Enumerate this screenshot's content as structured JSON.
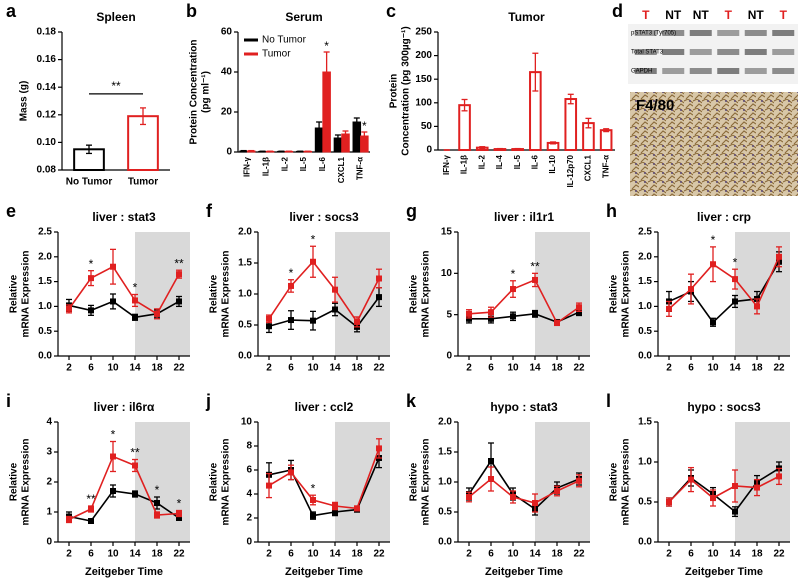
{
  "chart_data": [
    {
      "type": "bar",
      "panel": "a",
      "title": "Spleen",
      "ylabel": "Mass (g)",
      "categories": [
        "No Tumor",
        "Tumor"
      ],
      "values": [
        0.095,
        0.119
      ],
      "errors": [
        0.003,
        0.006
      ],
      "colors": [
        "#000000",
        "#e02020"
      ],
      "fill": false,
      "ylim": [
        0.08,
        0.18
      ],
      "yticks": [
        0.08,
        {
          "value": 0.1,
          "label": "0.10"
        },
        0.12,
        0.14,
        0.16,
        0.18
      ],
      "annotations": [
        {
          "text": "**"
        }
      ]
    },
    {
      "type": "bar",
      "panel": "b",
      "title": "Serum",
      "ylabel": [
        "Protein Concentration",
        "(pg ml⁻¹)"
      ],
      "categories": [
        "IFN-γ",
        "IL-1β",
        "IL-2",
        "IL-5",
        "IL-6",
        "CXCL1",
        "TNF-α"
      ],
      "series": [
        {
          "name": "No Tumor",
          "color": "#000000",
          "values": [
            0.5,
            0.3,
            0.3,
            0.3,
            12,
            7,
            15
          ],
          "errors": [
            0.2,
            0.1,
            0.1,
            0.1,
            3,
            1.5,
            2
          ]
        },
        {
          "name": "Tumor",
          "color": "#e02020",
          "values": [
            0.5,
            0.3,
            0.3,
            0.3,
            40,
            9,
            8
          ],
          "errors": [
            0.2,
            0.1,
            0.1,
            0.1,
            10,
            1.5,
            2
          ]
        }
      ],
      "fill": true,
      "legend": "upper left",
      "ylim": [
        0,
        60
      ],
      "yticks": [
        0,
        20,
        40,
        60
      ],
      "annotations": [
        {
          "index": 4,
          "series": 1,
          "text": "*"
        },
        {
          "index": 6,
          "series": 1,
          "text": "*"
        }
      ]
    },
    {
      "type": "bar",
      "panel": "c",
      "title": "Tumor",
      "ylabel": [
        "Protein",
        "Concentration (pg 300µg⁻¹)"
      ],
      "categories": [
        "IFN-γ",
        "IL-1β",
        "IL-2",
        "IL-4",
        "IL-5",
        "IL-6",
        "IL-10",
        "IL-12p70",
        "CXCL1",
        "TNF-α"
      ],
      "values": [
        0,
        95,
        5,
        2,
        2,
        165,
        15,
        108,
        57,
        42
      ],
      "errors": [
        0.5,
        12,
        2,
        1,
        1,
        40,
        2,
        10,
        10,
        3
      ],
      "colors": [
        "#e02020"
      ],
      "fill": false,
      "ylim": [
        0,
        250
      ],
      "yticks": [
        0,
        50,
        100,
        150,
        200,
        250
      ]
    },
    {
      "type": "line",
      "panel": "e",
      "title": "liver : stat3",
      "ylabel": [
        "Relative",
        "mRNA Expression"
      ],
      "x": [
        2,
        6,
        10,
        14,
        18,
        22
      ],
      "xlim": [
        0,
        24
      ],
      "xticks": [
        2,
        6,
        10,
        14,
        18,
        22
      ],
      "shade": [
        14,
        24
      ],
      "series": [
        {
          "color": "#000000",
          "values": [
            1.02,
            0.92,
            1.1,
            0.78,
            0.85,
            1.1
          ],
          "errors": [
            0.12,
            0.1,
            0.15,
            0.06,
            0.08,
            0.1
          ]
        },
        {
          "color": "#e02020",
          "values": [
            0.95,
            1.57,
            1.8,
            1.12,
            0.85,
            1.65
          ],
          "errors": [
            0.08,
            0.15,
            0.35,
            0.12,
            0.1,
            0.08
          ]
        }
      ],
      "ylim": [
        0,
        2.5
      ],
      "yticks": [
        {
          "value": 0,
          "label": "0.0"
        },
        0.5,
        {
          "value": 1,
          "label": "1.0"
        },
        1.5,
        {
          "value": 2,
          "label": "2.0"
        },
        2.5
      ],
      "annotations": [
        {
          "x": 6,
          "text": "*"
        },
        {
          "x": 14,
          "text": "*"
        },
        {
          "x": 22,
          "text": "**"
        }
      ]
    },
    {
      "type": "line",
      "panel": "f",
      "title": "liver : socs3",
      "ylabel": [
        "Relative",
        "mRNA Expression"
      ],
      "x": [
        2,
        6,
        10,
        14,
        18,
        22
      ],
      "xlim": [
        0,
        24
      ],
      "xticks": [
        2,
        6,
        10,
        14,
        18,
        22
      ],
      "shade": [
        14,
        24
      ],
      "series": [
        {
          "color": "#000000",
          "values": [
            0.48,
            0.58,
            0.57,
            0.75,
            0.47,
            0.95
          ],
          "errors": [
            0.1,
            0.15,
            0.15,
            0.1,
            0.08,
            0.15
          ]
        },
        {
          "color": "#e02020",
          "values": [
            0.6,
            1.13,
            1.52,
            1.07,
            0.55,
            1.25
          ],
          "errors": [
            0.06,
            0.1,
            0.25,
            0.2,
            0.08,
            0.15
          ]
        }
      ],
      "ylim": [
        0,
        2
      ],
      "yticks": [
        {
          "value": 0,
          "label": "0.0"
        },
        0.5,
        {
          "value": 1,
          "label": "1.0"
        },
        1.5,
        {
          "value": 2,
          "label": "2.0"
        }
      ],
      "annotations": [
        {
          "x": 6,
          "text": "*"
        },
        {
          "x": 10,
          "text": "*"
        }
      ]
    },
    {
      "type": "line",
      "panel": "g",
      "title": "liver : il1r1",
      "ylabel": [
        "Relative",
        "mRNA Expression"
      ],
      "x": [
        2,
        6,
        10,
        14,
        18,
        22
      ],
      "xlim": [
        0,
        24
      ],
      "xticks": [
        2,
        6,
        10,
        14,
        18,
        22
      ],
      "shade": [
        14,
        24
      ],
      "series": [
        {
          "color": "#000000",
          "values": [
            4.5,
            4.5,
            4.8,
            5.1,
            4.1,
            5.3
          ],
          "errors": [
            0.5,
            0.5,
            0.5,
            0.4,
            0.3,
            0.4
          ]
        },
        {
          "color": "#e02020",
          "values": [
            5.1,
            5.3,
            8.1,
            9.2,
            4.0,
            5.9
          ],
          "errors": [
            0.5,
            0.6,
            1.0,
            0.8,
            0.3,
            0.5
          ]
        }
      ],
      "ylim": [
        0,
        15
      ],
      "yticks": [
        0,
        5,
        10,
        15
      ],
      "annotations": [
        {
          "x": 10,
          "text": "*"
        },
        {
          "x": 14,
          "text": "**"
        }
      ]
    },
    {
      "type": "line",
      "panel": "h",
      "title": "liver : crp",
      "ylabel": [
        "Relative",
        "mRNA Expression"
      ],
      "x": [
        2,
        6,
        10,
        14,
        18,
        22
      ],
      "xlim": [
        0,
        24
      ],
      "xticks": [
        2,
        6,
        10,
        14,
        18,
        22
      ],
      "shade": [
        14,
        24
      ],
      "series": [
        {
          "color": "#000000",
          "values": [
            1.1,
            1.3,
            0.68,
            1.1,
            1.15,
            1.9
          ],
          "errors": [
            0.2,
            0.2,
            0.08,
            0.12,
            0.15,
            0.2
          ]
        },
        {
          "color": "#e02020",
          "values": [
            0.95,
            1.35,
            1.85,
            1.55,
            1.0,
            2.0
          ],
          "errors": [
            0.15,
            0.3,
            0.35,
            0.2,
            0.15,
            0.2
          ]
        }
      ],
      "ylim": [
        0,
        2.5
      ],
      "yticks": [
        {
          "value": 0,
          "label": "0.0"
        },
        0.5,
        {
          "value": 1,
          "label": "1.0"
        },
        1.5,
        {
          "value": 2,
          "label": "2.0"
        },
        2.5
      ],
      "annotations": [
        {
          "x": 10,
          "text": "*"
        },
        {
          "x": 14,
          "text": "*"
        }
      ]
    },
    {
      "type": "line",
      "panel": "i",
      "title": "liver : il6rα",
      "ylabel": [
        "Relative",
        "mRNA Expression"
      ],
      "xlabel": "Zeitgeber Time",
      "x": [
        2,
        6,
        10,
        14,
        18,
        22
      ],
      "xlim": [
        0,
        24
      ],
      "xticks": [
        2,
        6,
        10,
        14,
        18,
        22
      ],
      "shade": [
        14,
        24
      ],
      "series": [
        {
          "color": "#000000",
          "values": [
            0.85,
            0.7,
            1.7,
            1.6,
            1.3,
            0.8
          ],
          "errors": [
            0.15,
            0.05,
            0.2,
            0.1,
            0.2,
            0.05
          ]
        },
        {
          "color": "#e02020",
          "values": [
            0.75,
            1.1,
            2.85,
            2.55,
            0.9,
            0.95
          ],
          "errors": [
            0.1,
            0.1,
            0.5,
            0.2,
            0.1,
            0.1
          ]
        }
      ],
      "ylim": [
        0,
        4
      ],
      "yticks": [
        0,
        1,
        2,
        3,
        4
      ],
      "annotations": [
        {
          "x": 6,
          "text": "**"
        },
        {
          "x": 10,
          "text": "*"
        },
        {
          "x": 14,
          "text": "**"
        },
        {
          "x": 18,
          "text": "*"
        },
        {
          "x": 22,
          "text": "*"
        }
      ]
    },
    {
      "type": "line",
      "panel": "j",
      "title": "liver : ccl2",
      "ylabel": [
        "Relative",
        "mRNA Expression"
      ],
      "xlabel": "Zeitgeber Time",
      "x": [
        2,
        6,
        10,
        14,
        18,
        22
      ],
      "xlim": [
        0,
        24
      ],
      "xticks": [
        2,
        6,
        10,
        14,
        18,
        22
      ],
      "shade": [
        14,
        24
      ],
      "series": [
        {
          "color": "#000000",
          "values": [
            5.6,
            6.0,
            2.2,
            2.5,
            2.7,
            7.0
          ],
          "errors": [
            1,
            0.8,
            0.3,
            0.3,
            0.2,
            0.8
          ]
        },
        {
          "color": "#e02020",
          "values": [
            4.7,
            5.8,
            3.5,
            3.0,
            2.8,
            7.8
          ],
          "errors": [
            1,
            0.6,
            0.4,
            0.3,
            0.2,
            0.8
          ]
        }
      ],
      "ylim": [
        0,
        10
      ],
      "yticks": [
        0,
        2,
        4,
        6,
        8,
        10
      ],
      "annotations": [
        {
          "x": 10,
          "text": "*"
        }
      ]
    },
    {
      "type": "line",
      "panel": "k",
      "title": "hypo : stat3",
      "ylabel": [
        "Relative",
        "mRNA Expression"
      ],
      "xlabel": "Zeitgeber Time",
      "x": [
        2,
        6,
        10,
        14,
        18,
        22
      ],
      "xlim": [
        0,
        24
      ],
      "xticks": [
        2,
        6,
        10,
        14,
        18,
        22
      ],
      "shade": [
        14,
        24
      ],
      "series": [
        {
          "color": "#000000",
          "values": [
            0.8,
            1.35,
            0.8,
            0.55,
            0.9,
            1.05
          ],
          "errors": [
            0.1,
            0.3,
            0.1,
            0.1,
            0.1,
            0.1
          ]
        },
        {
          "color": "#e02020",
          "values": [
            0.75,
            1.05,
            0.75,
            0.65,
            0.85,
            1.02
          ],
          "errors": [
            0.08,
            0.2,
            0.1,
            0.15,
            0.08,
            0.1
          ]
        }
      ],
      "ylim": [
        0,
        2
      ],
      "yticks": [
        {
          "value": 0,
          "label": "0.0"
        },
        0.5,
        {
          "value": 1,
          "label": "1.0"
        },
        1.5,
        {
          "value": 2,
          "label": "2.0"
        }
      ]
    },
    {
      "type": "line",
      "panel": "l",
      "title": "hypo : socs3",
      "ylabel": [
        "Relative",
        "mRNA Expression"
      ],
      "xlabel": "Zeitgeber Time",
      "x": [
        2,
        6,
        10,
        14,
        18,
        22
      ],
      "xlim": [
        0,
        24
      ],
      "xticks": [
        2,
        6,
        10,
        14,
        18,
        22
      ],
      "shade": [
        14,
        24
      ],
      "series": [
        {
          "color": "#000000",
          "values": [
            0.5,
            0.8,
            0.6,
            0.38,
            0.75,
            0.92
          ],
          "errors": [
            0.05,
            0.1,
            0.08,
            0.06,
            0.08,
            0.08
          ]
        },
        {
          "color": "#e02020",
          "values": [
            0.5,
            0.78,
            0.55,
            0.7,
            0.68,
            0.82
          ],
          "errors": [
            0.05,
            0.15,
            0.1,
            0.2,
            0.1,
            0.1
          ]
        }
      ],
      "ylim": [
        0,
        1.5
      ],
      "yticks": [
        {
          "value": 0,
          "label": "0.0"
        },
        0.5,
        {
          "value": 1,
          "label": "1.0"
        },
        1.5
      ]
    }
  ],
  "figure_d": {
    "panel": "d",
    "lanes": [
      {
        "label": "T",
        "color": "#e02020"
      },
      {
        "label": "NT",
        "color": "#000000"
      },
      {
        "label": "NT",
        "color": "#000000"
      },
      {
        "label": "T",
        "color": "#e02020"
      },
      {
        "label": "NT",
        "color": "#000000"
      },
      {
        "label": "T",
        "color": "#e02020"
      }
    ],
    "rows": [
      "pSTAT3 (Tyr705)",
      "Total STAT3",
      "GAPDH"
    ],
    "stain": "F4/80"
  }
}
